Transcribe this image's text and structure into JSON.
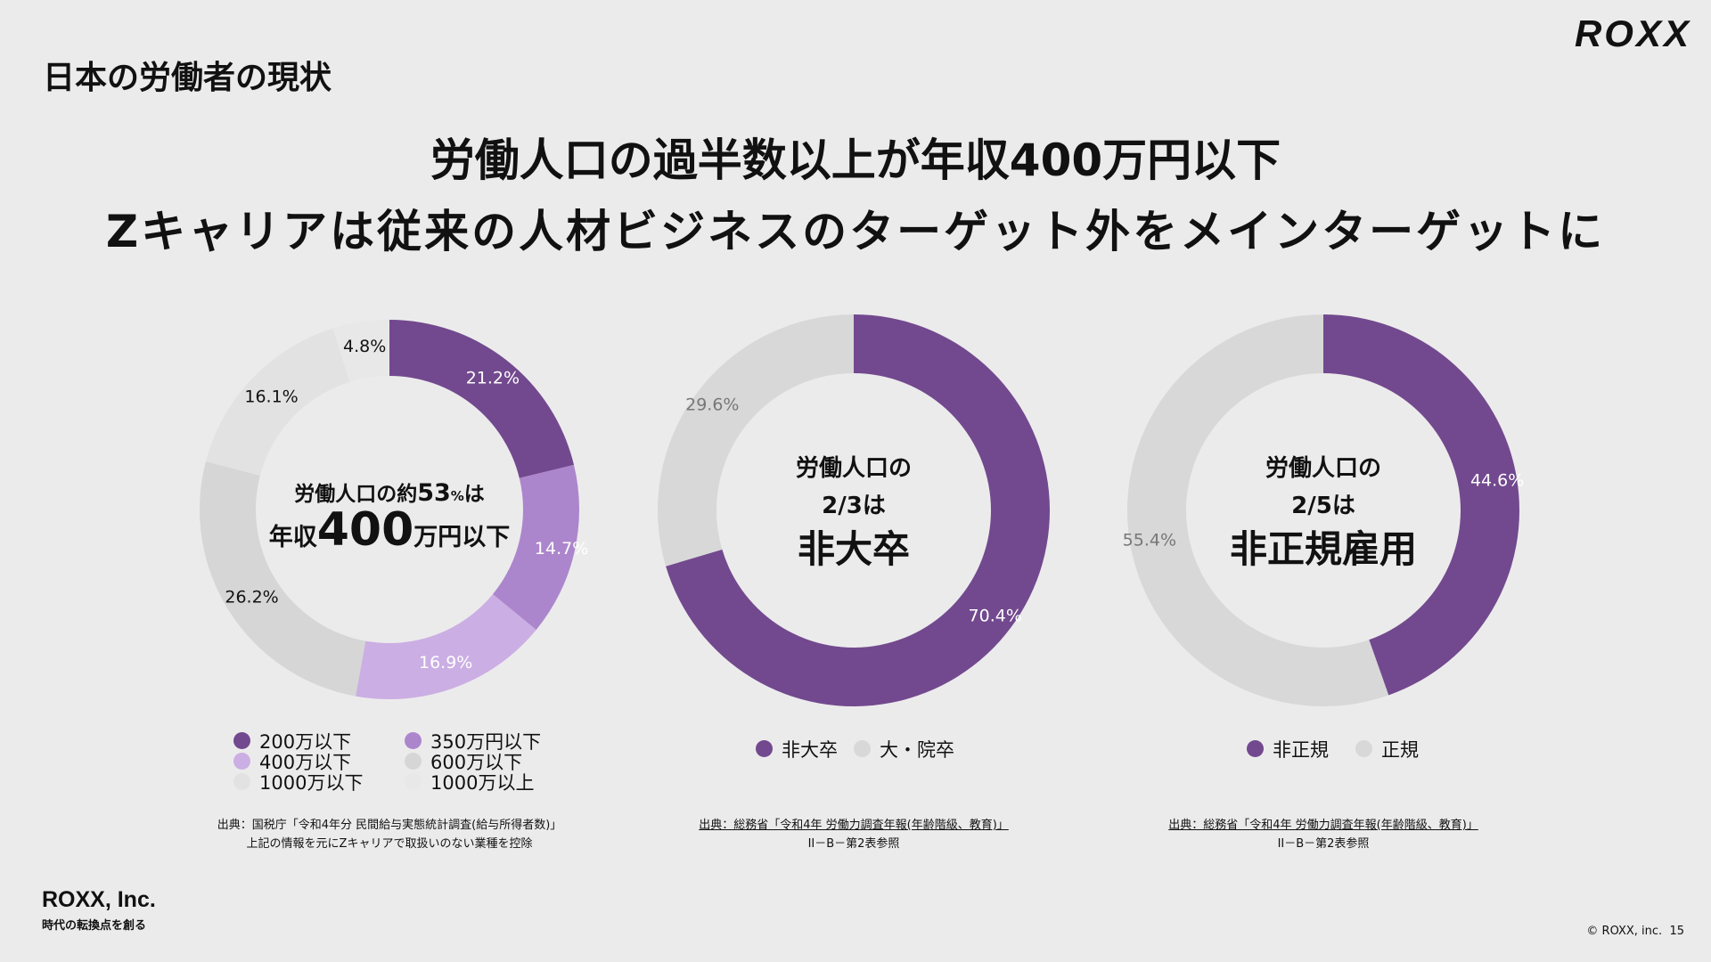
{
  "header": {
    "page_title": "日本の労働者の現状",
    "logo": "ROXX"
  },
  "headline": {
    "line1": "労働人口の過半数以上が年収400万円以下",
    "line2": "Zキャリアは従来の人材ビジネスのターゲット外をメインターゲットに"
  },
  "chart_data": [
    {
      "type": "pie",
      "subtype": "donut",
      "center_text": {
        "line1_a": "労働人口の約",
        "line1_num": "53",
        "line1_pct": "%",
        "line1_b": "は",
        "line2_a": "年収",
        "line2_num": "400",
        "line2_b": "万円以下"
      },
      "categories": [
        "200万以下",
        "350万円以下",
        "400万以下",
        "600万以下",
        "1000万以下",
        "1000万以上"
      ],
      "values": [
        21.2,
        14.7,
        16.9,
        26.2,
        16.1,
        4.8
      ],
      "labels": [
        "21.2%",
        "14.7%",
        "16.9%",
        "26.2%",
        "16.1%",
        "4.8%"
      ],
      "colors": [
        "#72498e",
        "#ac86cc",
        "#cbaee3",
        "#d6d6d6",
        "#e2e2e2",
        "#e8e8e8"
      ],
      "label_colors": [
        "#ffffff",
        "#ffffff",
        "#ffffff",
        "#111111",
        "#111111",
        "#111111"
      ],
      "source": [
        "出典：国税庁「令和4年分 民間給与実態統計調査(給与所得者数)」",
        "上記の情報を元にZキャリアで取扱いのない業種を控除"
      ]
    },
    {
      "type": "pie",
      "subtype": "donut",
      "center_text": {
        "line1": "労働人口の",
        "line2": "2/3は",
        "line3": "非大卒"
      },
      "categories": [
        "非大卒",
        "大・院卒"
      ],
      "values": [
        70.4,
        29.6
      ],
      "labels": [
        "70.4%",
        "29.6%"
      ],
      "colors": [
        "#72498e",
        "#d8d8d8"
      ],
      "label_colors": [
        "#ffffff",
        "#777777"
      ],
      "source": [
        "出典：総務省「令和4年 労働力調査年報(年齢階級、教育)」",
        "II－B－第2表参照"
      ]
    },
    {
      "type": "pie",
      "subtype": "donut",
      "center_text": {
        "line1": "労働人口の",
        "line2": "2/5は",
        "line3": "非正規雇用"
      },
      "categories": [
        "非正規",
        "正規"
      ],
      "values": [
        44.6,
        55.4
      ],
      "labels": [
        "44.6%",
        "55.4%"
      ],
      "colors": [
        "#72498e",
        "#d8d8d8"
      ],
      "label_colors": [
        "#ffffff",
        "#777777"
      ],
      "source": [
        "出典：総務省「令和4年 労働力調査年報(年齢階級、教育)」",
        "II－B－第2表参照"
      ]
    }
  ],
  "footer": {
    "company": "ROXX, Inc.",
    "tagline": "時代の転換点を創る",
    "copyright": "© ROXX, inc.",
    "page_number": "15"
  }
}
